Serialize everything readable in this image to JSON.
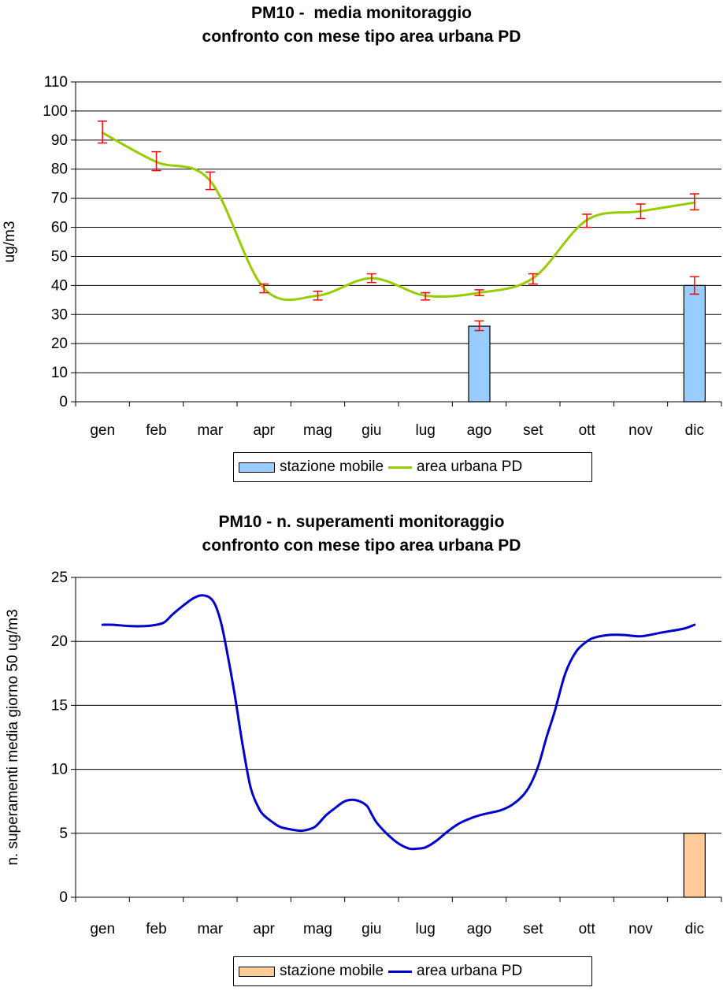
{
  "chart_data": [
    {
      "type": "bar",
      "title_lines": [
        "PM10 -  media monitoraggio",
        "confronto con mese tipo area urbana PD"
      ],
      "xlabel": "",
      "ylabel": "ug/m3",
      "ylim": [
        0,
        110
      ],
      "yticks": [
        0,
        10,
        20,
        30,
        40,
        50,
        60,
        70,
        80,
        90,
        100,
        110
      ],
      "grid": true,
      "categories": [
        "gen",
        "feb",
        "mar",
        "apr",
        "mag",
        "giu",
        "lug",
        "ago",
        "set",
        "ott",
        "nov",
        "dic"
      ],
      "series": [
        {
          "name": "stazione mobile",
          "kind": "bar",
          "color": "#99ccff",
          "values": [
            0,
            0,
            0,
            0,
            0,
            0,
            0,
            26,
            0,
            0,
            0,
            40
          ],
          "error_low": [
            0,
            0,
            0,
            0,
            0,
            0,
            0,
            24.5,
            0,
            0,
            0,
            37
          ],
          "error_high": [
            0,
            0,
            0,
            0,
            0,
            0,
            0,
            27.8,
            0,
            0,
            0,
            43
          ]
        },
        {
          "name": "area urbana PD",
          "kind": "line",
          "color": "#99cc00",
          "values": [
            92.5,
            82.5,
            76,
            39,
            36.5,
            42.5,
            36.5,
            37.5,
            42.5,
            62.5,
            65.5,
            68.5
          ],
          "error_low": [
            89,
            79.5,
            73,
            37.5,
            35,
            41,
            35,
            36.5,
            40.5,
            60,
            63,
            66
          ],
          "error_high": [
            96.5,
            86,
            79,
            40.5,
            38,
            44,
            37.5,
            38.5,
            44,
            64.5,
            68,
            71.5
          ]
        }
      ],
      "legend": "bottom",
      "errorbar_color": "#ff0000"
    },
    {
      "type": "bar",
      "title_lines": [
        "PM10 - n. superamenti monitoraggio",
        "confronto con mese tipo area urbana PD"
      ],
      "xlabel": "",
      "ylabel": "n. superamenti media giorno 50 ug/m3",
      "ylim": [
        0,
        25
      ],
      "yticks": [
        0,
        5,
        10,
        15,
        20,
        25
      ],
      "grid": true,
      "categories": [
        "gen",
        "feb",
        "mar",
        "apr",
        "mag",
        "giu",
        "lug",
        "ago",
        "set",
        "ott",
        "nov",
        "dic"
      ],
      "series": [
        {
          "name": "stazione mobile",
          "kind": "bar",
          "color": "#ffcc99",
          "values": [
            0,
            0,
            0,
            0,
            0,
            0,
            0,
            0,
            0,
            0,
            0,
            5
          ]
        },
        {
          "name": "area urbana PD",
          "kind": "line",
          "color": "#0000cc",
          "x": [
            0,
            0.2,
            0.5,
            0.8,
            1.0,
            1.15,
            1.3,
            1.5,
            1.7,
            1.85,
            2.0,
            2.1,
            2.2,
            2.3,
            2.45,
            2.6,
            2.75,
            2.9,
            3.0,
            3.15,
            3.3,
            3.5,
            3.7,
            3.9,
            4.0,
            4.15,
            4.3,
            4.5,
            4.7,
            4.9,
            5.0,
            5.1,
            5.3,
            5.5,
            5.7,
            5.85,
            6.0,
            6.2,
            6.4,
            6.6,
            6.8,
            7.0,
            7.2,
            7.4,
            7.6,
            7.8,
            7.95,
            8.1,
            8.25,
            8.4,
            8.6,
            8.8,
            9.0,
            9.15,
            9.4,
            9.7,
            10.0,
            10.4,
            10.8,
            11.0
          ],
          "values": [
            21.3,
            21.3,
            21.2,
            21.2,
            21.3,
            21.5,
            22.1,
            22.8,
            23.4,
            23.6,
            23.4,
            22.8,
            21.5,
            19.5,
            16.0,
            12.0,
            8.6,
            7.0,
            6.4,
            5.9,
            5.5,
            5.3,
            5.2,
            5.4,
            5.7,
            6.4,
            6.9,
            7.5,
            7.6,
            7.2,
            6.5,
            5.8,
            4.9,
            4.2,
            3.8,
            3.8,
            3.9,
            4.4,
            5.1,
            5.7,
            6.1,
            6.4,
            6.6,
            6.8,
            7.2,
            7.9,
            8.8,
            10.3,
            12.5,
            14.5,
            17.5,
            19.2,
            20.0,
            20.3,
            20.5,
            20.5,
            20.4,
            20.7,
            21.0,
            21.3
          ]
        }
      ],
      "legend": "bottom"
    }
  ]
}
